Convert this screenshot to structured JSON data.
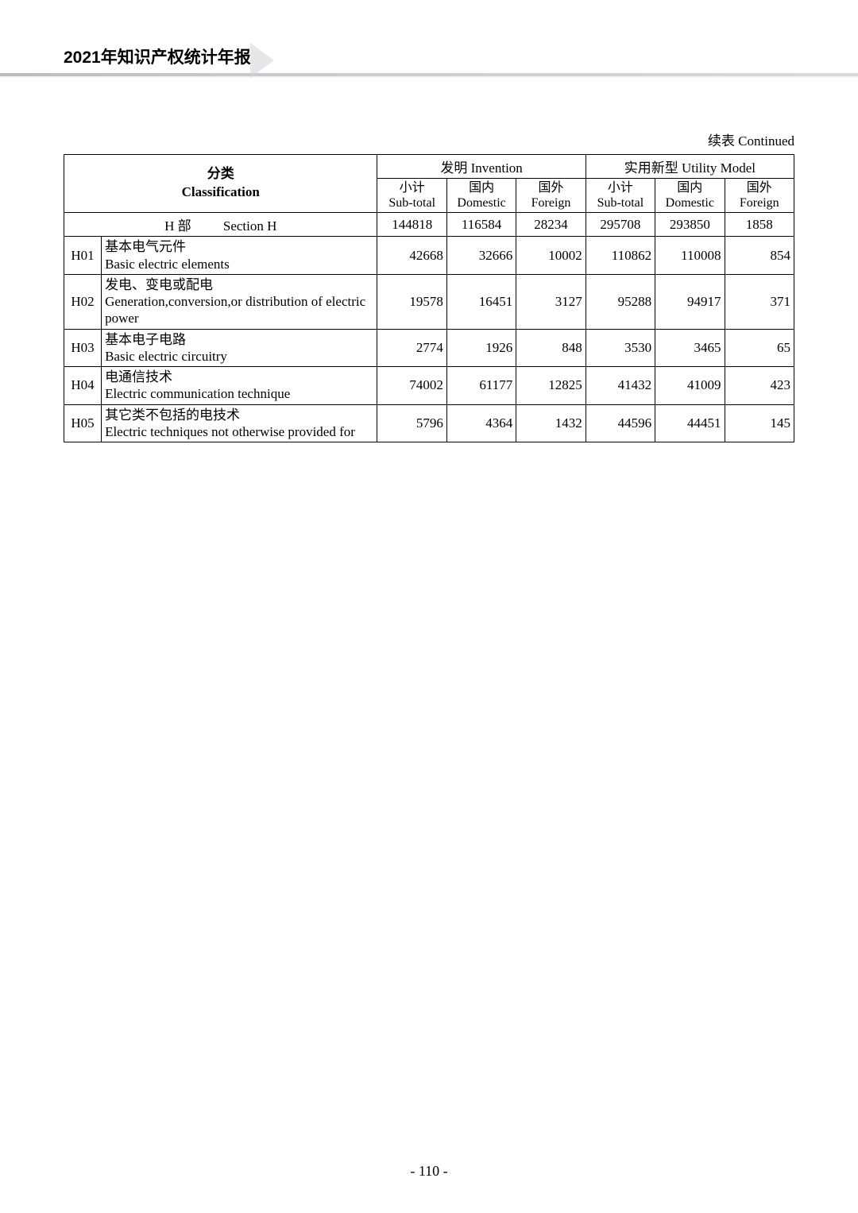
{
  "header": {
    "title": "2021年知识产权统计年报"
  },
  "continued_label": "续表  Continued",
  "table": {
    "class_header_cn": "分类",
    "class_header_en": "Classification",
    "group_invention": "发明 Invention",
    "group_utility": "实用新型 Utility Model",
    "sub_subtotal_cn": "小计",
    "sub_subtotal_en": "Sub-total",
    "sub_domestic_cn": "国内",
    "sub_domestic_en": "Domestic",
    "sub_foreign_cn": "国外",
    "sub_foreign_en": "Foreign",
    "section_row": {
      "label_cn": "H 部",
      "label_en": "Section H",
      "inv_subtotal": "144818",
      "inv_domestic": "116584",
      "inv_foreign": "28234",
      "util_subtotal": "295708",
      "util_domestic": "293850",
      "util_foreign": "1858"
    },
    "rows": [
      {
        "code": "H01",
        "desc_cn": "基本电气元件",
        "desc_en": "Basic electric elements",
        "inv_subtotal": "42668",
        "inv_domestic": "32666",
        "inv_foreign": "10002",
        "util_subtotal": "110862",
        "util_domestic": "110008",
        "util_foreign": "854"
      },
      {
        "code": "H02",
        "desc_cn": "发电、变电或配电",
        "desc_en": "Generation,conversion,or distribution of electric power",
        "inv_subtotal": "19578",
        "inv_domestic": "16451",
        "inv_foreign": "3127",
        "util_subtotal": "95288",
        "util_domestic": "94917",
        "util_foreign": "371"
      },
      {
        "code": "H03",
        "desc_cn": "基本电子电路",
        "desc_en": "Basic electric circuitry",
        "inv_subtotal": "2774",
        "inv_domestic": "1926",
        "inv_foreign": "848",
        "util_subtotal": "3530",
        "util_domestic": "3465",
        "util_foreign": "65"
      },
      {
        "code": "H04",
        "desc_cn": "电通信技术",
        "desc_en": "Electric communication technique",
        "inv_subtotal": "74002",
        "inv_domestic": "61177",
        "inv_foreign": "12825",
        "util_subtotal": "41432",
        "util_domestic": "41009",
        "util_foreign": "423"
      },
      {
        "code": "H05",
        "desc_cn": "其它类不包括的电技术",
        "desc_en": "Electric techniques not otherwise provided for",
        "inv_subtotal": "5796",
        "inv_domestic": "4364",
        "inv_foreign": "1432",
        "util_subtotal": "44596",
        "util_domestic": "44451",
        "util_foreign": "145"
      }
    ]
  },
  "page_number": "- 110 -"
}
